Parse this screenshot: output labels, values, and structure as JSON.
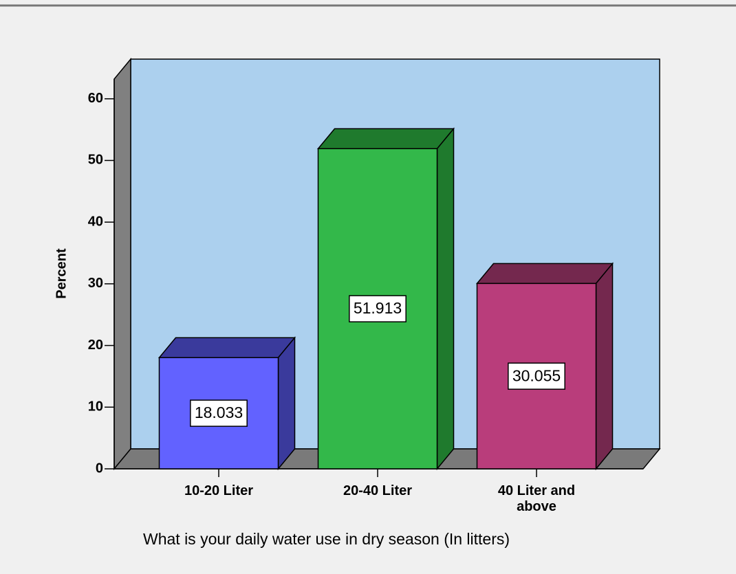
{
  "chart_data": {
    "type": "bar3d",
    "x_label": "What is your daily water use in dry season (In litters)",
    "y_label": "Percent",
    "categories": [
      "10-20 Liter",
      "20-40 Liter",
      "40 Liter and above"
    ],
    "values": [
      18.033,
      51.913,
      30.055
    ],
    "colors": [
      "#6262ff",
      "#33b84a",
      "#b93d7b"
    ],
    "side_colors": [
      "#3a3a9c",
      "#1f7a2d",
      "#74284e"
    ],
    "ylim": [
      0,
      63.2
    ],
    "yticks": [
      0,
      10,
      20,
      30,
      40,
      50,
      60
    ],
    "wall_color": "#acd0ee"
  }
}
